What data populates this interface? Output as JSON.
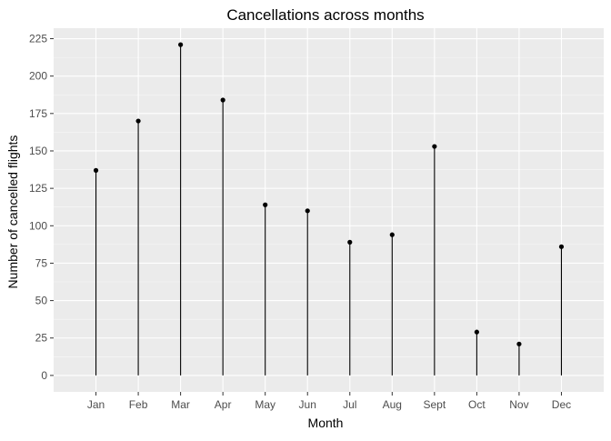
{
  "chart_data": {
    "type": "lollipop",
    "title": "Cancellations across months",
    "xlabel": "Month",
    "ylabel": "Number of cancelled flights",
    "categories": [
      "Jan",
      "Feb",
      "Mar",
      "Apr",
      "May",
      "Jun",
      "Jul",
      "Aug",
      "Sept",
      "Oct",
      "Nov",
      "Dec"
    ],
    "values": [
      137,
      170,
      221,
      184,
      114,
      110,
      89,
      94,
      153,
      29,
      21,
      86
    ],
    "y_ticks": [
      0,
      25,
      50,
      75,
      100,
      125,
      150,
      175,
      200,
      225
    ],
    "ylim": [
      -11,
      232
    ],
    "grid": true,
    "colors": {
      "panel_background": "#ebebeb",
      "major_grid": "#ffffff",
      "minor_grid": "#f5f5f5",
      "mark": "#000000",
      "tick_label": "#4d4d4d"
    }
  }
}
